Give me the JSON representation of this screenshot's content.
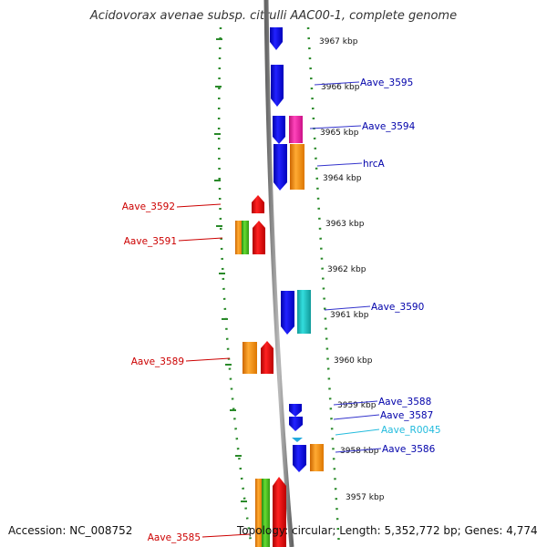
{
  "title": "Acidovorax avenae subsp. citrulli AAC00-1, complete genome",
  "footer": {
    "accession": "Accession: NC_008752",
    "summary": "Topology: circular; Length: 5,352,772 bp; Genes: 4,774"
  },
  "colors": {
    "background": "#ffffff",
    "backbone": "#888888",
    "dotted_guide": "#2a8a2a",
    "forward_gene": "#0000ee",
    "reverse_gene": "#ee0000",
    "orange": "#ff9900",
    "magenta": "#ff33aa",
    "cyan": "#22cccc",
    "green": "#44bb22",
    "rna_label": "#22bbdd"
  },
  "kbp_ticks": [
    "3967 kbp",
    "3966 kbp",
    "3965 kbp",
    "3964 kbp",
    "3963 kbp",
    "3962 kbp",
    "3961 kbp",
    "3960 kbp",
    "3959 kbp",
    "3958 kbp",
    "3957 kbp"
  ],
  "right_labels": [
    {
      "name": "Aave_3595",
      "color": "#0000aa"
    },
    {
      "name": "Aave_3594",
      "color": "#0000aa"
    },
    {
      "name": "hrcA",
      "color": "#0000aa"
    },
    {
      "name": "Aave_3590",
      "color": "#0000aa"
    },
    {
      "name": "Aave_3588",
      "color": "#0000aa"
    },
    {
      "name": "Aave_3587",
      "color": "#0000aa"
    },
    {
      "name": "Aave_R0045",
      "color": "#22bbdd"
    },
    {
      "name": "Aave_3586",
      "color": "#0000aa"
    }
  ],
  "left_labels": [
    {
      "name": "Aave_3592",
      "color": "#cc0000"
    },
    {
      "name": "Aave_3591",
      "color": "#cc0000"
    },
    {
      "name": "Aave_3589",
      "color": "#cc0000"
    },
    {
      "name": "Aave_3585",
      "color": "#cc0000"
    }
  ]
}
